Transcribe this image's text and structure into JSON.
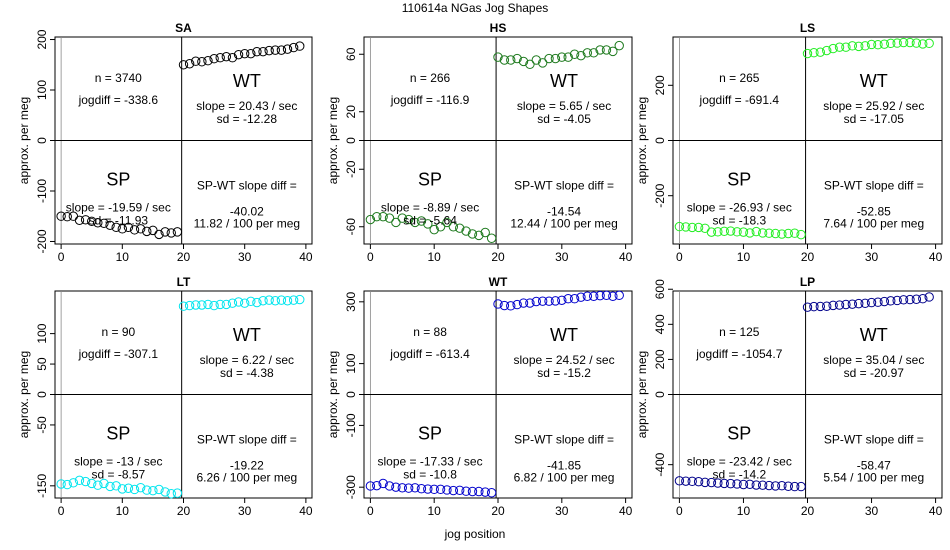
{
  "figure": {
    "title": "110614a   NGas Jog Shapes",
    "xlabel": "jog position"
  },
  "chart_data": [
    {
      "type": "scatter",
      "title": "SA",
      "ylabel": "approx. per meg",
      "color": "#000000",
      "xlim": [
        -1,
        41
      ],
      "ylim": [
        -205,
        205
      ],
      "xticks": [
        0,
        10,
        20,
        30,
        40
      ],
      "yticks": [
        -200,
        -100,
        0,
        100,
        200
      ],
      "x": [
        0,
        1,
        2,
        3,
        4,
        5,
        6,
        7,
        8,
        9,
        10,
        11,
        12,
        13,
        14,
        15,
        16,
        17,
        18,
        19,
        20,
        21,
        22,
        23,
        24,
        25,
        26,
        27,
        28,
        29,
        30,
        31,
        32,
        33,
        34,
        35,
        36,
        37,
        38,
        39
      ],
      "y": [
        -150,
        -151,
        -150,
        -158,
        -157,
        -160,
        -163,
        -164,
        -168,
        -172,
        -175,
        -172,
        -177,
        -175,
        -180,
        -178,
        -186,
        -181,
        -183,
        -181,
        150,
        152,
        157,
        156,
        158,
        162,
        164,
        166,
        164,
        170,
        172,
        172,
        176,
        176,
        178,
        179,
        179,
        181,
        184,
        187
      ],
      "annotations": {
        "n": "n = 3740",
        "jogdiff": "jogdiff = -338.6",
        "wt_label": "WT",
        "wt_slope": "slope = 20.43 / sec",
        "wt_sd": "sd = -12.28",
        "sp_label": "SP",
        "sp_slope": "slope = -19.59 / sec",
        "sp_sd": "sd = -11.93",
        "diff_label": "SP-WT slope diff =",
        "diff_value": "-40.02",
        "diff_rate": "11.82 / 100 per meg"
      }
    },
    {
      "type": "scatter",
      "title": "HS",
      "ylabel": "approx. per meg",
      "color": "#1e7a1e",
      "xlim": [
        -1,
        41
      ],
      "ylim": [
        -72,
        72
      ],
      "xticks": [
        0,
        10,
        20,
        30,
        40
      ],
      "yticks": [
        -60,
        -20,
        0,
        20,
        60
      ],
      "x": [
        0,
        1,
        2,
        3,
        4,
        5,
        6,
        7,
        8,
        9,
        10,
        11,
        12,
        13,
        14,
        15,
        16,
        17,
        18,
        19,
        20,
        21,
        22,
        23,
        24,
        25,
        26,
        27,
        28,
        29,
        30,
        31,
        32,
        33,
        34,
        35,
        36,
        37,
        38,
        39
      ],
      "y": [
        -55,
        -53,
        -53,
        -54,
        -57,
        -54,
        -55,
        -57,
        -56,
        -58,
        -62,
        -60,
        -57,
        -60,
        -61,
        -63,
        -65,
        -66,
        -64,
        -68,
        58,
        56,
        56,
        57,
        55,
        53,
        56,
        54,
        57,
        57,
        58,
        58,
        60,
        59,
        61,
        61,
        63,
        63,
        62,
        66
      ],
      "annotations": {
        "n": "n = 266",
        "jogdiff": "jogdiff = -116.9",
        "wt_label": "WT",
        "wt_slope": "slope = 5.65 / sec",
        "wt_sd": "sd = -4.05",
        "sp_label": "SP",
        "sp_slope": "slope = -8.89 / sec",
        "sp_sd": "sd = -5.64",
        "diff_label": "SP-WT slope diff =",
        "diff_value": "-14.54",
        "diff_rate": "12.44 / 100 per meg"
      }
    },
    {
      "type": "scatter",
      "title": "LS",
      "ylabel": "approx. per meg",
      "color": "#22ee22",
      "xlim": [
        -1,
        41
      ],
      "ylim": [
        -375,
        375
      ],
      "xticks": [
        0,
        10,
        20,
        30,
        40
      ],
      "yticks": [
        -200,
        0,
        200
      ],
      "x": [
        0,
        1,
        2,
        3,
        4,
        5,
        6,
        7,
        8,
        9,
        10,
        11,
        12,
        13,
        14,
        15,
        16,
        17,
        18,
        19,
        20,
        21,
        22,
        23,
        24,
        25,
        26,
        27,
        28,
        29,
        30,
        31,
        32,
        33,
        34,
        35,
        36,
        37,
        38,
        39
      ],
      "y": [
        -312,
        -313,
        -315,
        -315,
        -318,
        -332,
        -331,
        -329,
        -328,
        -331,
        -332,
        -335,
        -330,
        -335,
        -336,
        -337,
        -339,
        -337,
        -336,
        -341,
        315,
        318,
        320,
        326,
        333,
        338,
        338,
        343,
        341,
        343,
        348,
        347,
        349,
        352,
        353,
        355,
        355,
        353,
        350,
        352
      ],
      "annotations": {
        "n": "n = 265",
        "jogdiff": "jogdiff = -691.4",
        "wt_label": "WT",
        "wt_slope": "slope = 25.92 / sec",
        "wt_sd": "sd = -17.05",
        "sp_label": "SP",
        "sp_slope": "slope = -26.93 / sec",
        "sp_sd": "sd = -18.3",
        "diff_label": "SP-WT slope diff =",
        "diff_value": "-52.85",
        "diff_rate": "7.64 / 100 per meg"
      }
    },
    {
      "type": "scatter",
      "title": "LT",
      "ylabel": "approx. per meg",
      "color": "#00e5ee",
      "xlim": [
        -1,
        41
      ],
      "ylim": [
        -170,
        170
      ],
      "xticks": [
        0,
        10,
        20,
        30,
        40
      ],
      "yticks": [
        -150,
        -50,
        0,
        50,
        100
      ],
      "x": [
        0,
        1,
        2,
        3,
        4,
        5,
        6,
        7,
        8,
        9,
        10,
        11,
        12,
        13,
        14,
        15,
        16,
        17,
        18,
        19,
        20,
        21,
        22,
        23,
        24,
        25,
        26,
        27,
        28,
        29,
        30,
        31,
        32,
        33,
        34,
        35,
        36,
        37,
        38,
        39
      ],
      "y": [
        -147,
        -148,
        -145,
        -141,
        -143,
        -146,
        -149,
        -146,
        -151,
        -150,
        -155,
        -154,
        -156,
        -153,
        -157,
        -158,
        -156,
        -160,
        -163,
        -162,
        145,
        146,
        147,
        147,
        148,
        146,
        148,
        148,
        150,
        152,
        150,
        153,
        151,
        154,
        155,
        154,
        155,
        154,
        155,
        156
      ],
      "annotations": {
        "n": "n = 90",
        "jogdiff": "jogdiff = -307.1",
        "wt_label": "WT",
        "wt_slope": "slope = 6.22 / sec",
        "wt_sd": "sd = -4.38",
        "sp_label": "SP",
        "sp_slope": "slope = -13 / sec",
        "sp_sd": "sd = -8.57",
        "diff_label": "SP-WT slope diff =",
        "diff_value": "-19.22",
        "diff_rate": "6.26 / 100 per meg"
      }
    },
    {
      "type": "scatter",
      "title": "WT",
      "ylabel": "approx. per meg",
      "color": "#0000cc",
      "xlim": [
        -1,
        41
      ],
      "ylim": [
        -335,
        335
      ],
      "xticks": [
        0,
        10,
        20,
        30,
        40
      ],
      "yticks": [
        -300,
        -100,
        0,
        100,
        300
      ],
      "x": [
        0,
        1,
        2,
        3,
        4,
        5,
        6,
        7,
        8,
        9,
        10,
        11,
        12,
        13,
        14,
        15,
        16,
        17,
        18,
        19,
        20,
        21,
        22,
        23,
        24,
        25,
        26,
        27,
        28,
        29,
        30,
        31,
        32,
        33,
        34,
        35,
        36,
        37,
        38,
        39
      ],
      "y": [
        -296,
        -295,
        -288,
        -296,
        -300,
        -302,
        -303,
        -302,
        -305,
        -306,
        -307,
        -307,
        -309,
        -311,
        -310,
        -313,
        -314,
        -314,
        -316,
        -318,
        293,
        288,
        287,
        291,
        296,
        296,
        301,
        302,
        302,
        303,
        305,
        310,
        310,
        315,
        318,
        318,
        320,
        321,
        318,
        321
      ],
      "annotations": {
        "n": "n = 88",
        "jogdiff": "jogdiff = -613.4",
        "wt_label": "WT",
        "wt_slope": "slope = 24.52 / sec",
        "wt_sd": "sd = -15.2",
        "sp_label": "SP",
        "sp_slope": "slope = -17.33 / sec",
        "sp_sd": "sd = -10.8",
        "diff_label": "SP-WT slope diff =",
        "diff_value": "-41.85",
        "diff_rate": "6.82 / 100 per meg"
      }
    },
    {
      "type": "scatter",
      "title": "LP",
      "ylabel": "approx. per meg",
      "color": "#00008b",
      "xlim": [
        -1,
        41
      ],
      "ylim": [
        -590,
        590
      ],
      "xticks": [
        0,
        10,
        20,
        30,
        40
      ],
      "yticks": [
        -400,
        0,
        200,
        400,
        600
      ],
      "x": [
        0,
        1,
        2,
        3,
        4,
        5,
        6,
        7,
        8,
        9,
        10,
        11,
        12,
        13,
        14,
        15,
        16,
        17,
        18,
        19,
        20,
        21,
        22,
        23,
        24,
        25,
        26,
        27,
        28,
        29,
        30,
        31,
        32,
        33,
        34,
        35,
        36,
        37,
        38,
        39
      ],
      "y": [
        -492,
        -494,
        -495,
        -497,
        -501,
        -502,
        -505,
        -507,
        -508,
        -510,
        -513,
        -512,
        -516,
        -517,
        -519,
        -521,
        -520,
        -523,
        -525,
        -525,
        498,
        501,
        502,
        503,
        508,
        510,
        513,
        515,
        518,
        520,
        524,
        526,
        530,
        534,
        536,
        540,
        541,
        543,
        546,
        556
      ],
      "annotations": {
        "n": "n = 125",
        "jogdiff": "jogdiff = -1054.7",
        "wt_label": "WT",
        "wt_slope": "slope = 35.04 / sec",
        "wt_sd": "sd = -20.97",
        "sp_label": "SP",
        "sp_slope": "slope = -23.42 / sec",
        "sp_sd": "sd = -14.2",
        "diff_label": "SP-WT slope diff =",
        "diff_value": "-58.47",
        "diff_rate": "5.54 / 100 per meg"
      }
    }
  ]
}
